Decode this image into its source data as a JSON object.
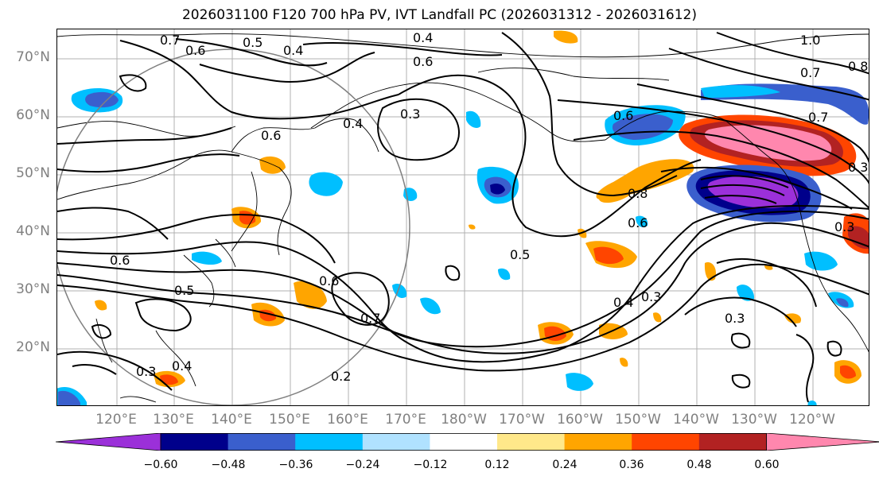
{
  "title": "2026031100 F120 700 hPa PV, IVT Landfall PC (2026031312 - 2026031612)",
  "latitude_labels": [
    "70°N",
    "60°N",
    "50°N",
    "40°N",
    "30°N",
    "20°N"
  ],
  "longitude_labels": [
    "120°E",
    "130°E",
    "140°E",
    "150°E",
    "160°E",
    "170°E",
    "180°W",
    "170°W",
    "160°W",
    "150°W",
    "140°W",
    "130°W",
    "120°W"
  ],
  "colorbar": {
    "ticks": [
      "−0.60",
      "−0.48",
      "−0.36",
      "−0.24",
      "−0.12",
      "0.12",
      "0.24",
      "0.36",
      "0.48",
      "0.60"
    ],
    "colors": [
      "#9b30d9",
      "#00008b",
      "#3a5fcd",
      "#00bfff",
      "#b0e2ff",
      "#ffffff",
      "#ffe88a",
      "#ffa500",
      "#ff4500",
      "#b22222",
      "#ff87ae"
    ],
    "extend": "both"
  },
  "contour_labels": {
    "c1": "0.7",
    "c2": "0.6",
    "c3": "0.5",
    "c4": "0.4",
    "c5": "0.4",
    "c6": "0.6",
    "c7": "0.3",
    "c8": "0.6",
    "c9": "0.4",
    "c10": "1.0",
    "c11": "0.8",
    "c12": "0.7",
    "c13": "0.7",
    "c14": "0.8",
    "c15": "0.6",
    "c16": "0.5",
    "c17": "0.4",
    "c18": "0.3",
    "c19": "0.3",
    "c20": "0.6",
    "c21": "0.7",
    "c22": "0.6",
    "c23": "0.5",
    "c24": "0.4",
    "c25": "0.2",
    "c26": "0.3",
    "c27": "0.3",
    "c28": "0.6",
    "c29": "0.3"
  }
}
